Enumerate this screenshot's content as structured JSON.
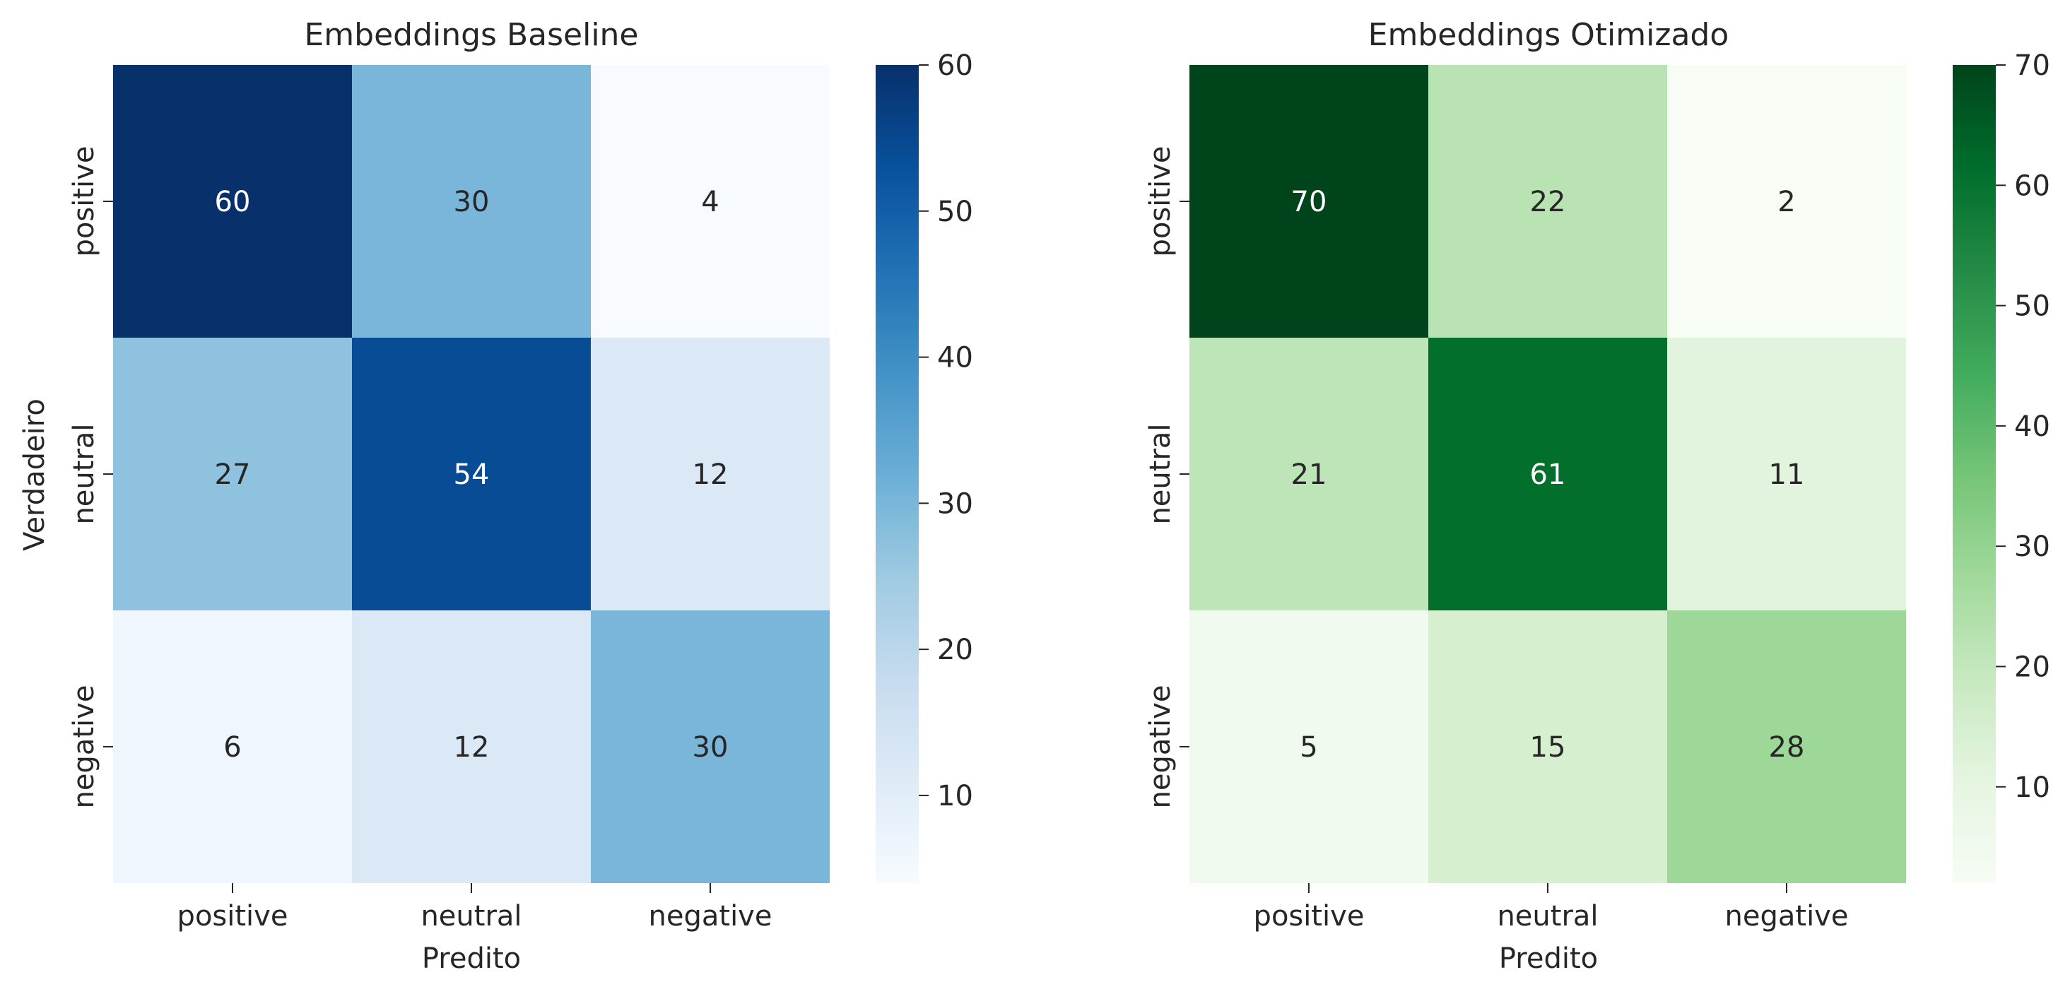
{
  "chart_data": [
    {
      "type": "heatmap",
      "title": "Embeddings Baseline",
      "xlabel": "Predito",
      "ylabel": "Verdadeiro",
      "x_categories": [
        "positive",
        "neutral",
        "negative"
      ],
      "y_categories": [
        "positive",
        "neutral",
        "negative"
      ],
      "values": [
        [
          60,
          30,
          4
        ],
        [
          27,
          54,
          12
        ],
        [
          6,
          12,
          30
        ]
      ],
      "colormap": "Blues",
      "colorbar": {
        "min": 4,
        "max": 60,
        "ticks": [
          10,
          20,
          30,
          40,
          50,
          60
        ]
      }
    },
    {
      "type": "heatmap",
      "title": "Embeddings Otimizado",
      "xlabel": "Predito",
      "ylabel": "",
      "x_categories": [
        "positive",
        "neutral",
        "negative"
      ],
      "y_categories": [
        "positive",
        "neutral",
        "negative"
      ],
      "values": [
        [
          70,
          22,
          2
        ],
        [
          21,
          61,
          11
        ],
        [
          5,
          15,
          28
        ]
      ],
      "colormap": "Greens",
      "colorbar": {
        "min": 2,
        "max": 70,
        "ticks": [
          10,
          20,
          30,
          40,
          50,
          60,
          70
        ]
      }
    }
  ],
  "colors": {
    "text": "#262626",
    "tick": "#262626",
    "annotation_light": "#ffffff",
    "annotation_dark": "#262626"
  }
}
